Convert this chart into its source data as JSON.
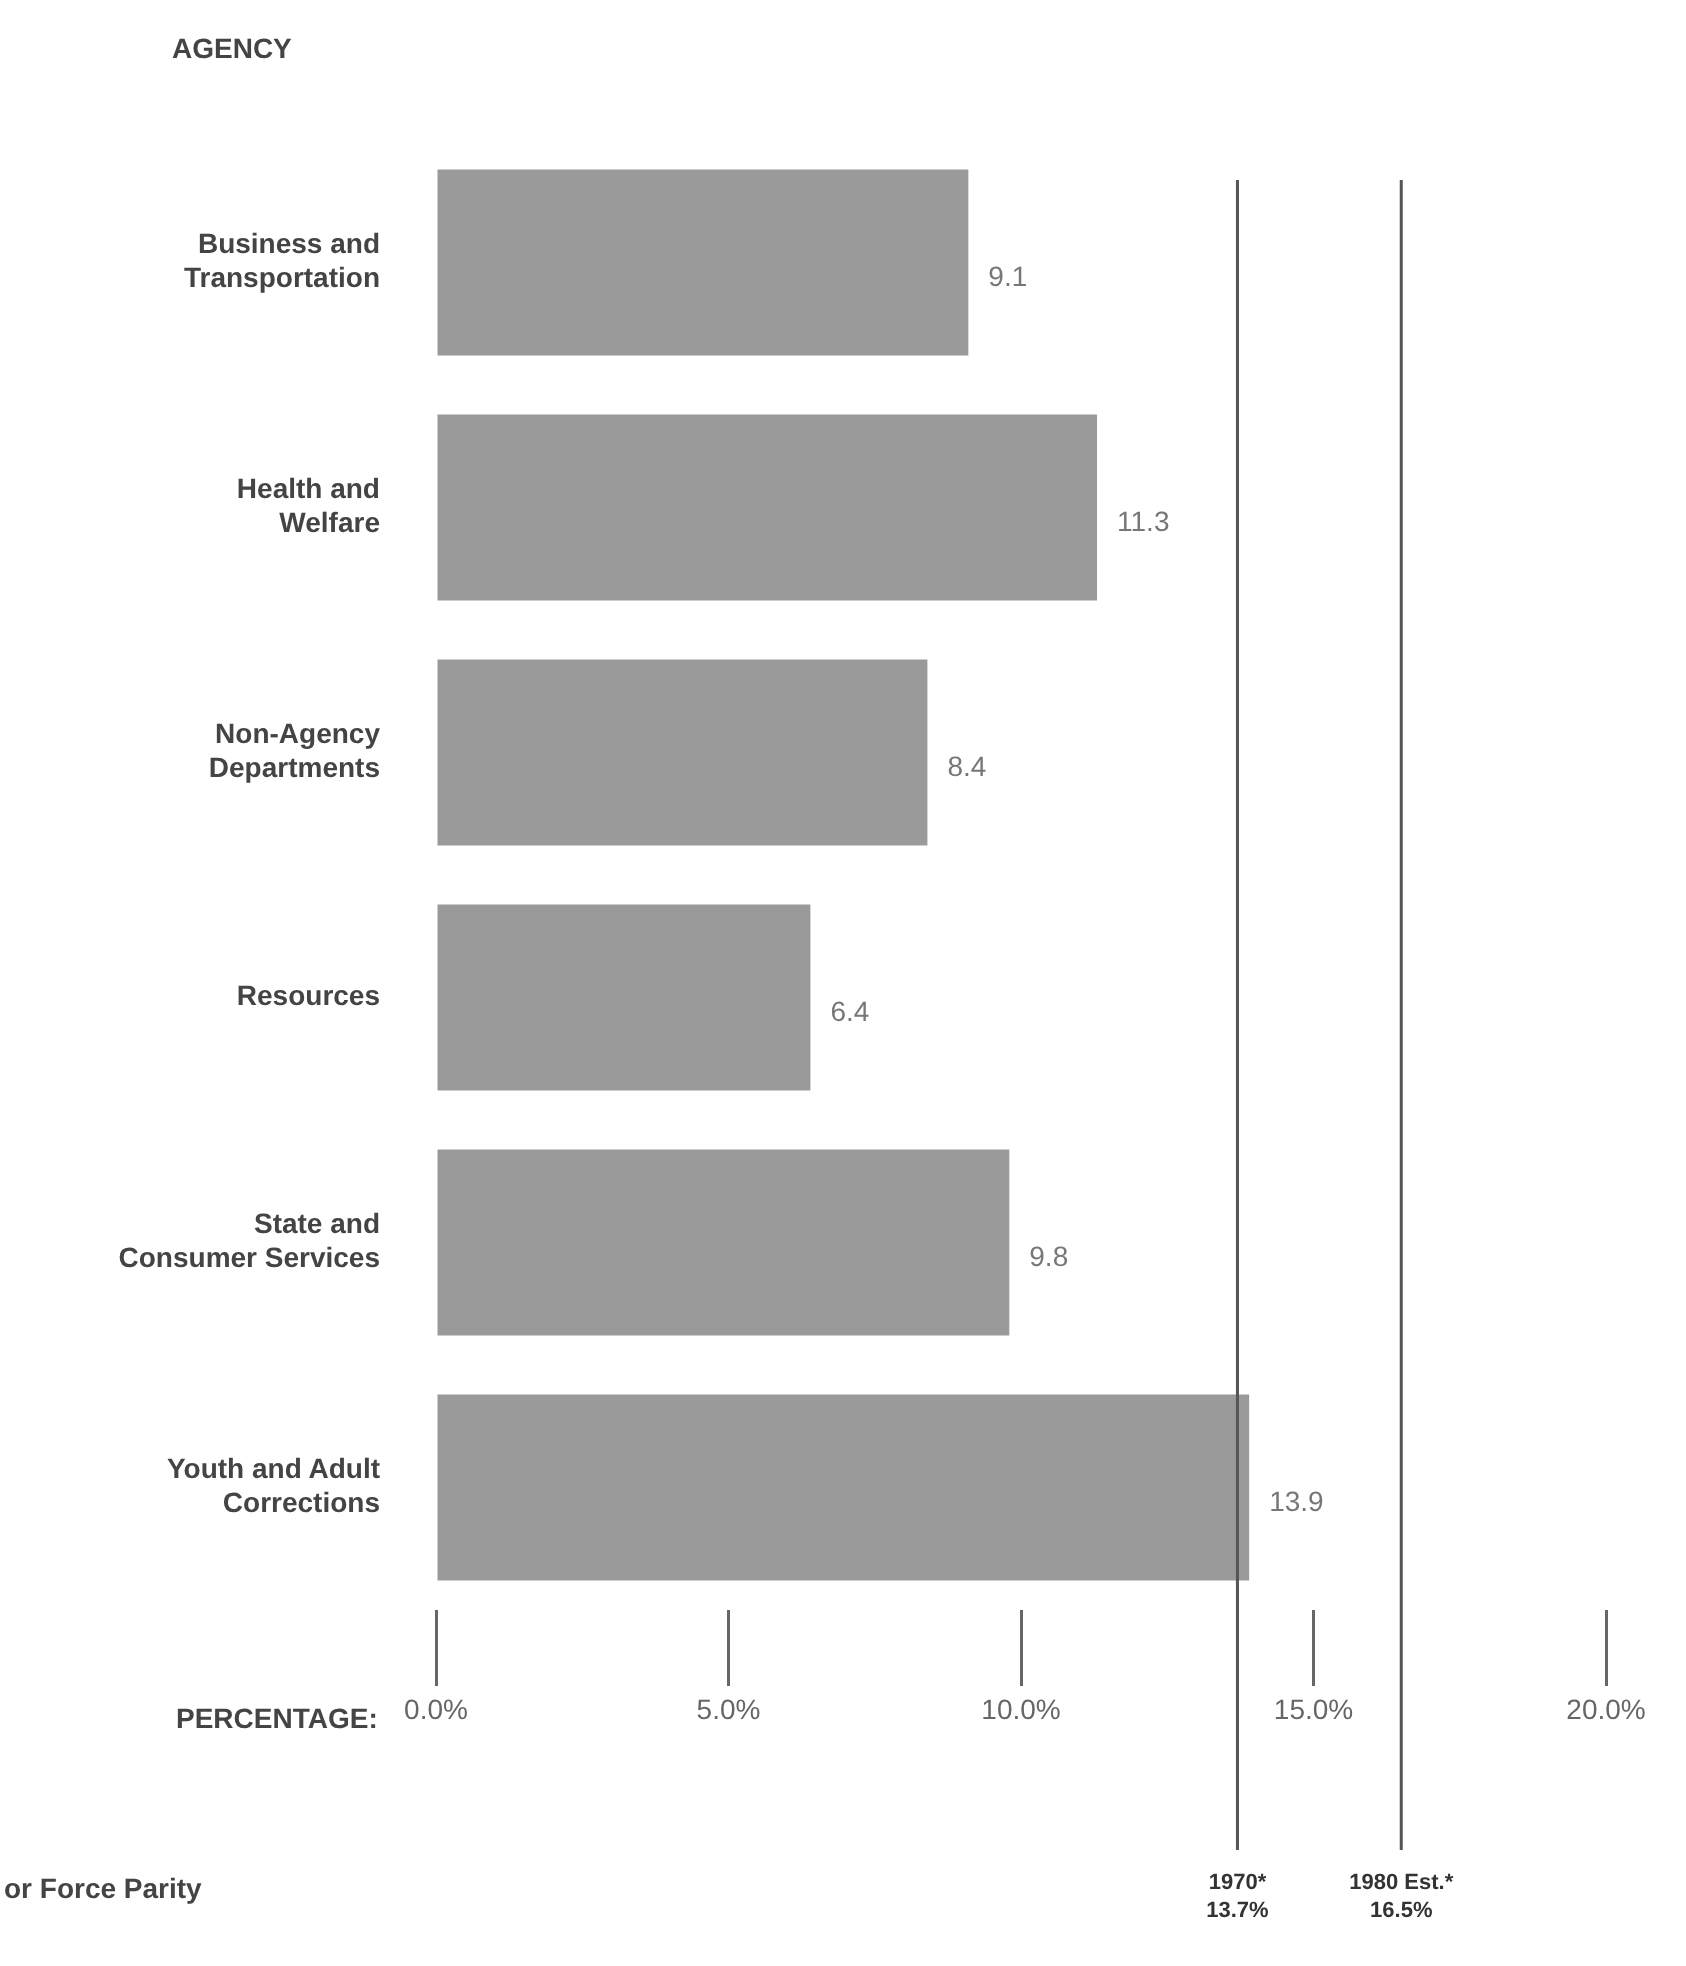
{
  "chart_data": {
    "type": "bar",
    "orientation": "horizontal",
    "ylabel": "AGENCY",
    "xlabel": "PERCENTAGE:",
    "categories": [
      "Business and\nTransportation",
      "Health and\nWelfare",
      "Non-Agency\nDepartments",
      "Resources",
      "State and\nConsumer Services",
      "Youth and Adult\nCorrections"
    ],
    "values": [
      9.1,
      11.3,
      8.4,
      6.4,
      9.8,
      13.9
    ],
    "color": "#9a9a9a",
    "data_labels": true,
    "xlim": [
      0,
      20
    ],
    "xticks": [
      {
        "value": 0,
        "label": "0.0%"
      },
      {
        "value": 5,
        "label": "5.0%"
      },
      {
        "value": 10,
        "label": "10.0%"
      },
      {
        "value": 15,
        "label": "15.0%"
      },
      {
        "value": 20,
        "label": "20.0%"
      }
    ],
    "ref_lines": [
      {
        "axis": "x",
        "value": 13.7,
        "label": "1970*\n13.7%",
        "color": "#555555"
      },
      {
        "axis": "x",
        "value": 16.5,
        "label": "1980 Est.*\n16.5%",
        "color": "#555555"
      }
    ],
    "annotations": [
      "or Force Parity"
    ],
    "grid": false,
    "legend": false
  }
}
